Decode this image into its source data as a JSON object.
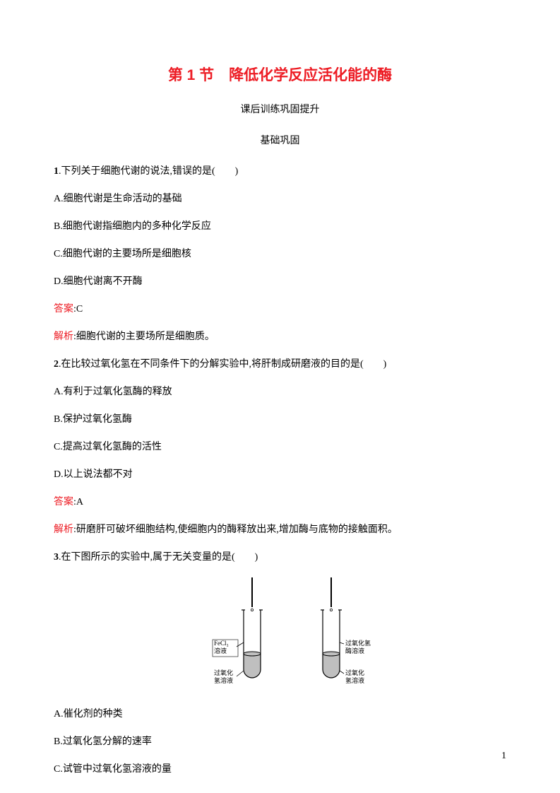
{
  "title": "第 1 节　降低化学反应活化能的酶",
  "subtitle": "课后训练巩固提升",
  "section": "基础巩固",
  "q1": {
    "num": "1",
    "stem": ".下列关于细胞代谢的说法,错误的是(　　)",
    "A": "A.细胞代谢是生命活动的基础",
    "B": "B.细胞代谢指细胞内的多种化学反应",
    "C": "C.细胞代谢的主要场所是细胞核",
    "D": "D.细胞代谢离不开酶",
    "ansLabel": "答案",
    "ans": ":C",
    "expLabel": "解析",
    "exp": ":细胞代谢的主要场所是细胞质。"
  },
  "q2": {
    "num": "2",
    "stem": ".在比较过氧化氢在不同条件下的分解实验中,将肝制成研磨液的目的是(　　)",
    "A": "A.有利于过氧化氢酶的释放",
    "B": "B.保护过氧化氢酶",
    "C": "C.提高过氧化氢酶的活性",
    "D": "D.以上说法都不对",
    "ansLabel": "答案",
    "ans": ":A",
    "expLabel": "解析",
    "exp": ":研磨肝可破坏细胞结构,使细胞内的酶释放出来,增加酶与底物的接触面积。"
  },
  "q3": {
    "num": "3",
    "stem": ".在下图所示的实验中,属于无关变量的是(　　)",
    "A": "A.催化剂的种类",
    "B": "B.过氧化氢分解的速率",
    "C": "C.试管中过氧化氢溶液的量"
  },
  "figure": {
    "type": "diagram",
    "background": "#ffffff",
    "stroke": "#000000",
    "liquid_fill": "#bfbfbf",
    "font_size": 9,
    "tube_w": 24,
    "tube_h": 96,
    "liquid_h": 34,
    "gap": 112,
    "labels": {
      "left_top": "FeCl₃\n溶液",
      "left_bottom": "过氧化\n氢溶液",
      "right_top": "过氧化氢\n酶溶液",
      "right_bottom": "过氧化\n氢溶液"
    }
  },
  "pagenum": "1"
}
